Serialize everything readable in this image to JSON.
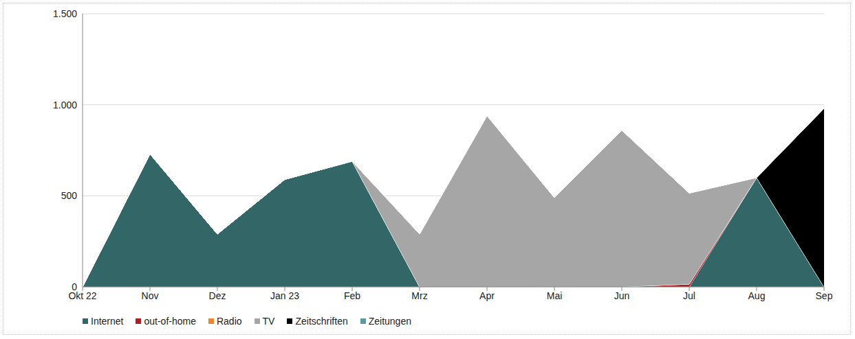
{
  "chart_data": {
    "type": "area",
    "stacked": true,
    "grid": true,
    "legend": "bottom",
    "categories": [
      "Okt 22",
      "Nov",
      "Dez",
      "Jan 23",
      "Feb",
      "Mrz",
      "Apr",
      "Mai",
      "Jun",
      "Jul",
      "Aug",
      "Sep"
    ],
    "ylim": [
      0,
      1500
    ],
    "yticks": [
      0,
      500,
      {
        "value": 1000,
        "label": "1.000"
      },
      {
        "value": 1500,
        "label": "1.500"
      }
    ],
    "series": [
      {
        "name": "Internet",
        "color": "#336666",
        "values": [
          0,
          730,
          290,
          590,
          690,
          0,
          0,
          0,
          0,
          0,
          600,
          0
        ]
      },
      {
        "name": "out-of-home",
        "color": "#B01E23",
        "values": [
          0,
          0,
          0,
          0,
          0,
          0,
          0,
          0,
          0,
          15,
          0,
          0
        ]
      },
      {
        "name": "Radio",
        "color": "#F4842A",
        "values": [
          0,
          0,
          0,
          0,
          0,
          0,
          0,
          0,
          0,
          0,
          0,
          0
        ]
      },
      {
        "name": "TV",
        "color": "#A6A6A6",
        "values": [
          0,
          0,
          0,
          0,
          0,
          290,
          940,
          490,
          860,
          500,
          0,
          0
        ]
      },
      {
        "name": "Zeitschriften",
        "color": "#000000",
        "values": [
          0,
          0,
          0,
          0,
          0,
          0,
          0,
          0,
          0,
          0,
          0,
          980
        ]
      },
      {
        "name": "Zeitungen",
        "color": "#5B99A6",
        "values": [
          0,
          0,
          0,
          0,
          0,
          0,
          0,
          0,
          0,
          0,
          0,
          0
        ]
      }
    ]
  }
}
